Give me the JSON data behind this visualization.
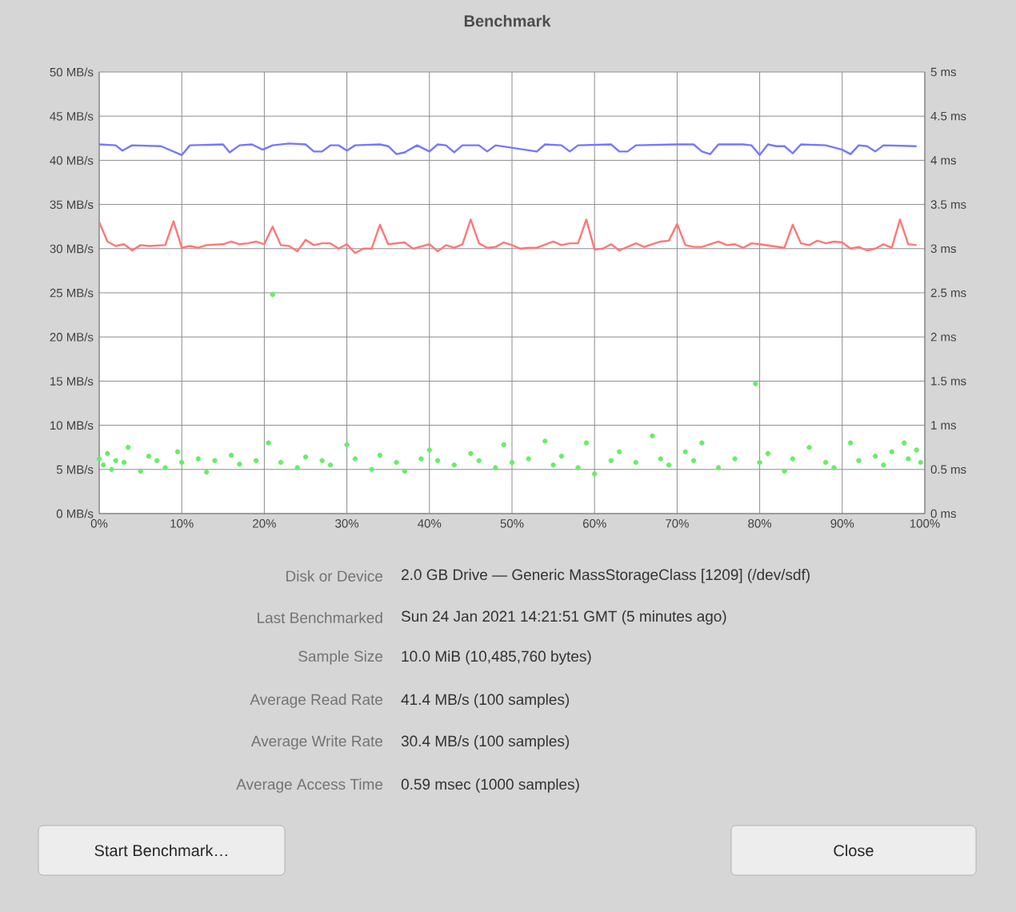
{
  "chart_data": {
    "type": "line",
    "title": "Benchmark",
    "xlim": [
      0,
      100
    ],
    "xticks": [
      {
        "value": 0,
        "label": "0%"
      },
      {
        "value": 10,
        "label": "10%"
      },
      {
        "value": 20,
        "label": "20%"
      },
      {
        "value": 30,
        "label": "30%"
      },
      {
        "value": 40,
        "label": "40%"
      },
      {
        "value": 50,
        "label": "50%"
      },
      {
        "value": 60,
        "label": "60%"
      },
      {
        "value": 70,
        "label": "70%"
      },
      {
        "value": 80,
        "label": "80%"
      },
      {
        "value": 90,
        "label": "90%"
      },
      {
        "value": 100,
        "label": "100%"
      }
    ],
    "ylim": [
      0,
      50
    ],
    "yticks": [
      {
        "value": 0,
        "label": "0 MB/s"
      },
      {
        "value": 5,
        "label": "5 MB/s"
      },
      {
        "value": 10,
        "label": "10 MB/s"
      },
      {
        "value": 15,
        "label": "15 MB/s"
      },
      {
        "value": 20,
        "label": "20 MB/s"
      },
      {
        "value": 25,
        "label": "25 MB/s"
      },
      {
        "value": 30,
        "label": "30 MB/s"
      },
      {
        "value": 35,
        "label": "35 MB/s"
      },
      {
        "value": 40,
        "label": "40 MB/s"
      },
      {
        "value": 45,
        "label": "45 MB/s"
      },
      {
        "value": 50,
        "label": "50 MB/s"
      }
    ],
    "y2lim": [
      0,
      5
    ],
    "y2ticks": [
      {
        "value": 0,
        "label": "0 ms"
      },
      {
        "value": 0.5,
        "label": "0.5 ms"
      },
      {
        "value": 1,
        "label": "1 ms"
      },
      {
        "value": 1.5,
        "label": "1.5 ms"
      },
      {
        "value": 2,
        "label": "2 ms"
      },
      {
        "value": 2.5,
        "label": "2.5 ms"
      },
      {
        "value": 3,
        "label": "3 ms"
      },
      {
        "value": 3.5,
        "label": "3.5 ms"
      },
      {
        "value": 4,
        "label": "4 ms"
      },
      {
        "value": 4.5,
        "label": "4.5 ms"
      },
      {
        "value": 5,
        "label": "5 ms"
      }
    ],
    "grid": true,
    "series": [
      {
        "color": "#7777ff",
        "x": [
          0,
          2,
          2.8,
          4,
          7.5,
          10,
          11,
          15,
          15.8,
          17,
          18.5,
          19.8,
          21,
          23,
          25,
          26,
          27,
          28,
          29,
          30,
          31,
          34,
          35,
          36,
          37,
          38.5,
          40,
          41,
          42,
          43,
          44,
          46,
          47,
          48,
          53,
          54,
          56,
          57,
          58,
          62,
          63,
          64,
          65,
          70,
          72,
          73,
          74,
          75,
          78,
          79,
          80,
          81,
          82,
          83,
          84,
          85,
          88,
          90,
          91,
          92,
          93,
          94,
          95,
          99
        ],
        "values": [
          41.8,
          41.7,
          41.1,
          41.7,
          41.6,
          40.6,
          41.7,
          41.8,
          40.9,
          41.7,
          41.8,
          41.2,
          41.7,
          41.9,
          41.8,
          41.0,
          41.0,
          41.7,
          41.7,
          41.1,
          41.7,
          41.8,
          41.6,
          40.7,
          40.9,
          41.7,
          41.0,
          41.8,
          41.7,
          40.9,
          41.7,
          41.7,
          41.0,
          41.7,
          41.0,
          41.8,
          41.7,
          41.0,
          41.7,
          41.8,
          41.0,
          41.0,
          41.7,
          41.8,
          41.8,
          41.0,
          40.7,
          41.8,
          41.8,
          41.7,
          40.6,
          41.8,
          41.6,
          41.6,
          40.8,
          41.8,
          41.7,
          41.2,
          40.7,
          41.7,
          41.6,
          41.0,
          41.7,
          41.6
        ]
      },
      {
        "color": "#ff7777",
        "x": [
          0,
          1,
          2,
          3,
          4,
          5,
          6,
          8,
          9,
          10,
          11,
          12,
          13,
          15,
          16,
          17,
          18,
          19,
          20,
          21,
          22,
          23,
          24,
          25,
          26,
          27,
          28,
          29,
          30,
          31,
          32,
          33,
          34,
          35,
          36,
          37,
          38,
          40,
          41,
          42,
          43,
          44,
          45,
          46,
          47,
          48,
          49,
          50,
          51,
          52,
          53,
          55,
          56,
          57,
          58,
          59,
          60,
          61,
          62,
          63,
          65,
          66,
          68,
          69,
          70,
          71,
          72,
          73,
          75,
          76,
          77,
          78,
          79,
          80,
          83,
          84,
          85,
          86,
          87,
          88,
          89,
          90,
          91,
          92,
          93,
          94,
          95,
          96,
          97,
          98,
          99
        ],
        "values": [
          33.0,
          30.8,
          30.3,
          30.5,
          29.8,
          30.4,
          30.3,
          30.4,
          33.1,
          30.1,
          30.3,
          30.1,
          30.4,
          30.5,
          30.8,
          30.5,
          30.6,
          30.8,
          30.5,
          32.5,
          30.4,
          30.3,
          29.7,
          31.0,
          30.4,
          30.6,
          30.6,
          30.0,
          30.5,
          29.5,
          30.0,
          30.0,
          32.7,
          30.5,
          30.6,
          30.7,
          30.0,
          30.5,
          29.7,
          30.4,
          30.1,
          30.5,
          33.3,
          30.6,
          30.1,
          30.2,
          30.7,
          30.4,
          30.0,
          30.1,
          30.1,
          30.8,
          30.4,
          30.6,
          30.6,
          33.3,
          29.9,
          30.0,
          30.5,
          29.8,
          30.6,
          30.2,
          30.8,
          30.9,
          32.8,
          30.4,
          30.2,
          30.2,
          30.8,
          30.4,
          30.5,
          30.1,
          30.6,
          30.5,
          30.1,
          32.7,
          30.6,
          30.4,
          30.9,
          30.6,
          30.8,
          30.7,
          30.0,
          30.2,
          29.8,
          30.0,
          30.5,
          30.1,
          33.3,
          30.5,
          30.4
        ]
      },
      {
        "type": "scatter",
        "axis": "y2",
        "color": "#66ee66",
        "x": [
          0,
          0.5,
          1,
          1.5,
          2,
          3,
          3.5,
          5,
          6,
          7,
          8,
          9.5,
          10,
          12,
          13,
          14,
          16,
          17,
          19,
          20.5,
          21,
          22,
          24,
          25,
          27,
          28,
          30,
          31,
          33,
          34,
          36,
          37,
          39,
          40,
          41,
          43,
          45,
          46,
          48,
          49,
          50,
          52,
          54,
          55,
          56,
          58,
          59,
          60,
          62,
          63,
          65,
          67,
          68,
          69,
          71,
          72,
          73,
          75,
          77,
          79.5,
          80,
          81,
          83,
          84,
          86,
          88,
          89,
          91,
          92,
          94,
          95,
          96,
          97.5,
          98,
          99,
          99.5
        ],
        "values": [
          0.62,
          0.55,
          0.68,
          0.5,
          0.6,
          0.58,
          0.75,
          0.48,
          0.65,
          0.6,
          0.52,
          0.7,
          0.58,
          0.62,
          0.47,
          0.6,
          0.66,
          0.56,
          0.6,
          0.8,
          2.48,
          0.58,
          0.52,
          0.64,
          0.6,
          0.55,
          0.78,
          0.62,
          0.5,
          0.66,
          0.58,
          0.48,
          0.62,
          0.72,
          0.6,
          0.55,
          0.68,
          0.6,
          0.52,
          0.78,
          0.58,
          0.62,
          0.82,
          0.55,
          0.65,
          0.52,
          0.8,
          0.45,
          0.6,
          0.7,
          0.58,
          0.88,
          0.62,
          0.55,
          0.7,
          0.6,
          0.8,
          0.52,
          0.62,
          1.47,
          0.58,
          0.68,
          0.48,
          0.62,
          0.75,
          0.58,
          0.52,
          0.8,
          0.6,
          0.65,
          0.55,
          0.7,
          0.8,
          0.62,
          0.72,
          0.58
        ]
      }
    ],
    "annotations": [
      "Disk or Device",
      "2.0 GB Drive — Generic MassStorageClass [1209] (/dev/sdf)",
      "Last Benchmarked",
      "Sun 24 Jan 2021 14:21:51 GMT (5 minutes ago)",
      "Sample Size",
      "10.0 MiB (10,485,760 bytes)",
      "Average Read Rate",
      "41.4 MB/s (100 samples)",
      "Average Write Rate",
      "30.4 MB/s (100 samples)",
      "Average Access Time",
      "0.59 msec (1000 samples)",
      "Start Benchmark…",
      "Close"
    ]
  }
}
